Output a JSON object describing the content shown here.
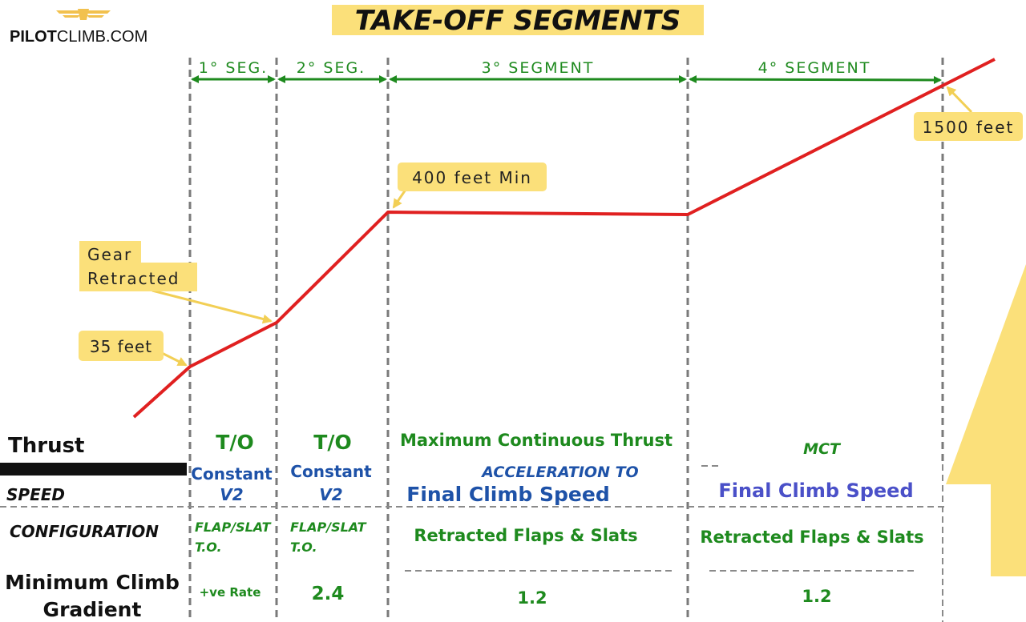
{
  "logo": {
    "text_bold": "PILOT",
    "text_rest": "CLIMB.COM"
  },
  "title": "TAKE-OFF  SEGMENTS",
  "segments": [
    {
      "id": "seg1",
      "label": "1° SEG."
    },
    {
      "id": "seg2",
      "label": "2° SEG."
    },
    {
      "id": "seg3",
      "label": "3° SEGMENT"
    },
    {
      "id": "seg4",
      "label": "4° SEGMENT"
    }
  ],
  "callouts": {
    "ft35": "35 feet",
    "gear_line1": "Gear",
    "gear_line2": "Retracted",
    "ft400": "400 feet Min",
    "ft1500": "1500 feet"
  },
  "rows": {
    "thrust": "Thrust",
    "speed": "SPEED",
    "configuration": "CONFIGURATION",
    "gradient_line1": "Minimum Climb",
    "gradient_line2": "Gradient"
  },
  "table": {
    "seg1": {
      "thrust": "T/O",
      "speed_line1": "Constant",
      "speed_line2": "V2",
      "config_line1": "FLAP/SLAT",
      "config_line2": "T.O.",
      "gradient": "+ve Rate"
    },
    "seg2": {
      "thrust": "T/O",
      "speed_line1": "Constant",
      "speed_line2": "V2",
      "config_line1": "FLAP/SLAT",
      "config_line2": "T.O.",
      "gradient": "2.4"
    },
    "seg3": {
      "thrust": "Maximum Continuous Thrust",
      "speed_line1": "ACCELERATION TO",
      "speed_line2": "Final Climb Speed",
      "config": "Retracted Flaps & Slats",
      "gradient": "1.2"
    },
    "seg4": {
      "thrust": "MCT",
      "speed": "Final Climb Speed",
      "config": "Retracted Flaps & Slats",
      "gradient": "1.2"
    }
  },
  "colors": {
    "green": "#1e8a1e",
    "blue": "#1e52a8",
    "red": "#e02020",
    "callout": "#fbe07a",
    "title_bg": "#fbe07a",
    "logo_wing": "#f2c14e"
  }
}
